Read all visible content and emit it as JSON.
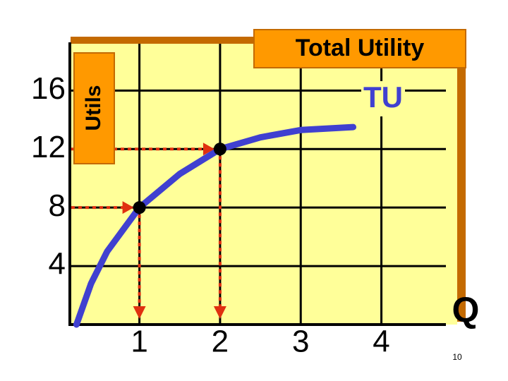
{
  "chart_data": {
    "type": "line",
    "title": "Total Utility",
    "y_label": "Utils",
    "x_label": "Q",
    "xlim": [
      0.12,
      4.8
    ],
    "ylim": [
      0,
      19.2
    ],
    "xticks": [
      1,
      2,
      3,
      4
    ],
    "yticks": [
      4,
      8,
      12,
      16
    ],
    "grid": true,
    "series": [
      {
        "name": "TU",
        "color": "#4040d0",
        "x": [
          0.22,
          0.4,
          0.6,
          1,
          1.5,
          2,
          2.5,
          3,
          3.65
        ],
        "values": [
          0,
          2.8,
          5,
          8,
          10.3,
          12,
          12.8,
          13.3,
          13.5
        ]
      }
    ],
    "points": {
      "x": [
        1,
        2
      ],
      "values": [
        8,
        12
      ],
      "color": "#e03010"
    },
    "page_number": "10"
  }
}
